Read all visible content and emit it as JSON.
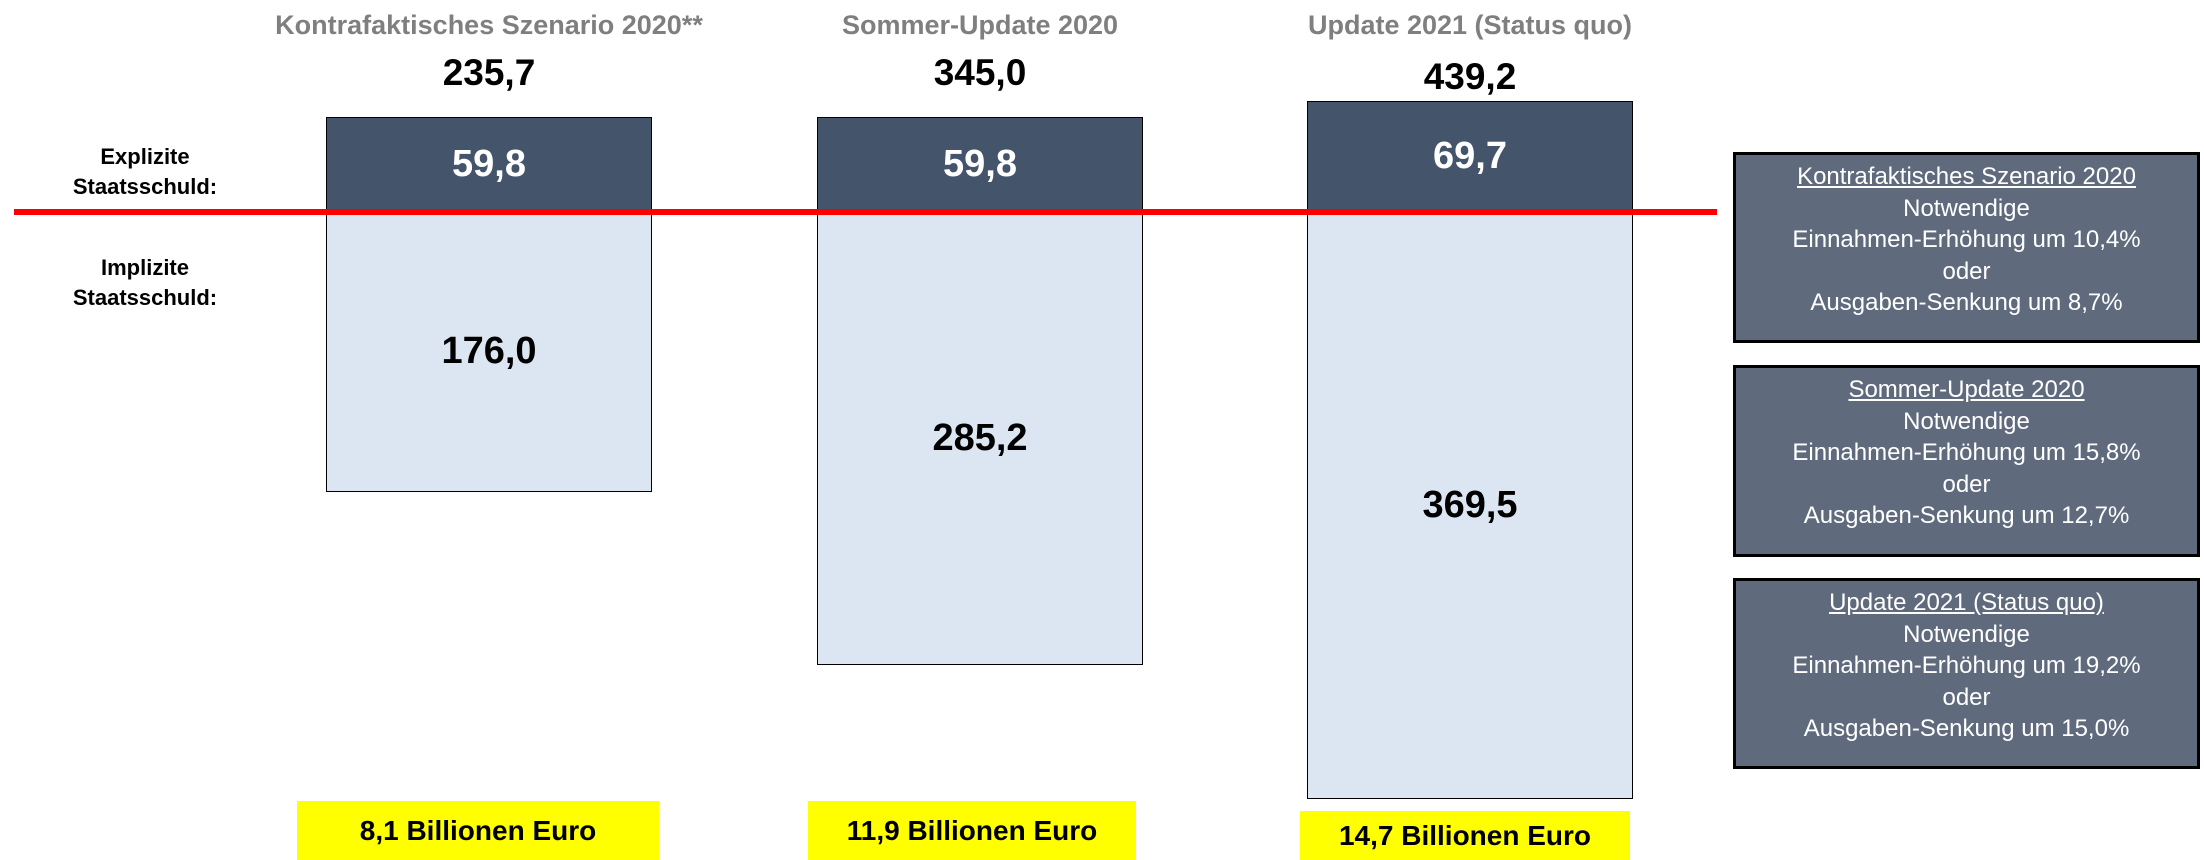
{
  "chart_data": {
    "type": "bar",
    "categories": [
      "Kontrafaktisches Szenario 2020**",
      "Sommer-Update 2020",
      "Update 2021 (Status quo)"
    ],
    "series": [
      {
        "name": "Explizite Staatsschuld:",
        "color": "#44546a",
        "values": [
          59.8,
          59.8,
          69.7
        ],
        "value_labels": [
          "59,8",
          "59,8",
          "69,7"
        ]
      },
      {
        "name": "Implizite Staatsschuld:",
        "color": "#dce6f2",
        "values": [
          176.0,
          285.2,
          369.5
        ],
        "value_labels": [
          "176,0",
          "285,2",
          "369,5"
        ]
      }
    ],
    "totals": {
      "values": [
        235.7,
        345.0,
        439.2
      ],
      "value_labels": [
        "235,7",
        "345,0",
        "439,2"
      ]
    },
    "bottom_labels": [
      "8,1 Billionen Euro",
      "11,9 Billionen Euro",
      "14,7 Billionen Euro"
    ],
    "boxes": [
      {
        "title": "Kontrafaktisches Szenario 2020",
        "lines": [
          "Notwendige",
          "Einnahmen-Erhöhung um 10,4%",
          "oder",
          "Ausgaben-Senkung um 8,7%"
        ]
      },
      {
        "title": "Sommer-Update 2020",
        "lines": [
          "Notwendige",
          "Einnahmen-Erhöhung um 15,8%",
          "oder",
          "Ausgaben-Senkung um 12,7%"
        ]
      },
      {
        "title": "Update 2021 (Status quo)",
        "lines": [
          "Notwendige",
          "Einnahmen-Erhöhung um 19,2%",
          "oder",
          "Ausgaben-Senkung um 15,0%"
        ]
      }
    ]
  }
}
